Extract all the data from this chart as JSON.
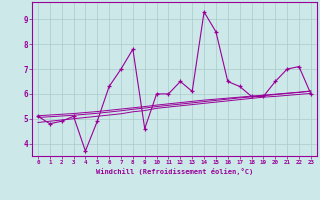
{
  "xlabel": "Windchill (Refroidissement éolien,°C)",
  "x": [
    0,
    1,
    2,
    3,
    4,
    5,
    6,
    7,
    8,
    9,
    10,
    11,
    12,
    13,
    14,
    15,
    16,
    17,
    18,
    19,
    20,
    21,
    22,
    23
  ],
  "y_main": [
    5.1,
    4.8,
    4.9,
    5.1,
    3.7,
    4.9,
    6.3,
    7.0,
    7.8,
    4.6,
    6.0,
    6.0,
    6.5,
    6.1,
    9.3,
    8.5,
    6.5,
    6.3,
    5.9,
    5.9,
    6.5,
    7.0,
    7.1,
    6.0
  ],
  "y_trend1": [
    4.85,
    4.9,
    4.95,
    5.0,
    5.05,
    5.1,
    5.15,
    5.2,
    5.28,
    5.33,
    5.42,
    5.47,
    5.52,
    5.57,
    5.62,
    5.67,
    5.72,
    5.77,
    5.82,
    5.87,
    5.9,
    5.94,
    5.98,
    6.02
  ],
  "y_trend2": [
    5.05,
    5.08,
    5.11,
    5.14,
    5.18,
    5.22,
    5.27,
    5.32,
    5.38,
    5.43,
    5.49,
    5.54,
    5.59,
    5.64,
    5.69,
    5.74,
    5.79,
    5.84,
    5.88,
    5.93,
    5.97,
    6.02,
    6.06,
    6.11
  ],
  "y_trend3": [
    5.12,
    5.15,
    5.18,
    5.21,
    5.25,
    5.29,
    5.34,
    5.39,
    5.44,
    5.49,
    5.55,
    5.6,
    5.65,
    5.7,
    5.75,
    5.79,
    5.83,
    5.87,
    5.91,
    5.95,
    5.99,
    6.03,
    6.07,
    6.12
  ],
  "line_color": "#990099",
  "bg_color": "#cce8e8",
  "grid_color": "#aacccc",
  "ylim": [
    3.5,
    9.7
  ],
  "yticks": [
    4,
    5,
    6,
    7,
    8,
    9
  ],
  "xlim": [
    -0.5,
    23.5
  ]
}
